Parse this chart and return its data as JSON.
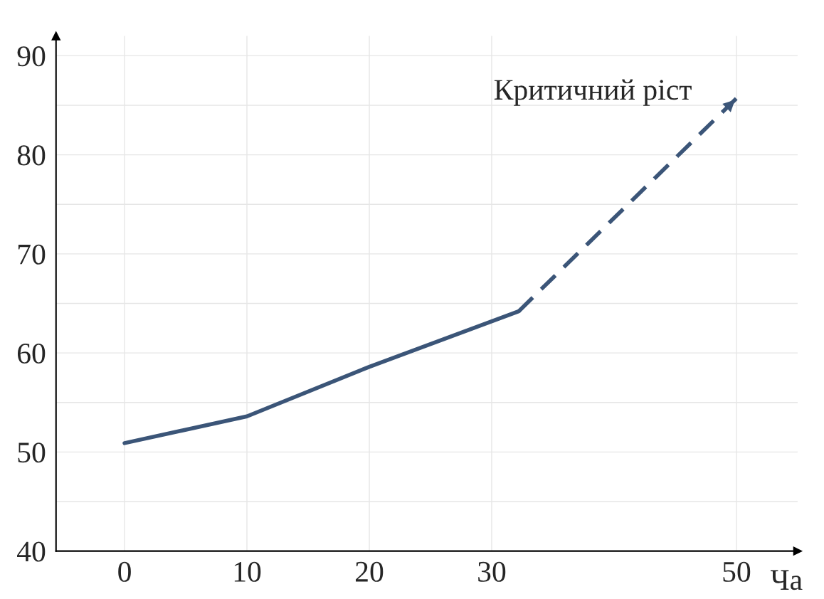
{
  "chart_data": {
    "type": "line",
    "xlabel": "Ча",
    "series": [
      {
        "color": "#3b5578",
        "x": [
          0,
          10,
          20,
          32.2
        ],
        "values": [
          50.9,
          53.6,
          58.6,
          64.2
        ],
        "line_style": "solid"
      },
      {
        "color": "#3b5578",
        "x": [
          32.2,
          50
        ],
        "values": [
          64.2,
          85.7
        ],
        "line_style": "dashed"
      }
    ],
    "annotations": [
      {
        "text": "Критичний ріст",
        "x": 50,
        "y": 85.7
      }
    ],
    "xlim": [
      -5.6,
      55
    ],
    "xticks": [
      0,
      10,
      20,
      30,
      50
    ],
    "ylim": [
      40,
      92
    ],
    "yticks": [
      40,
      {
        "value": 45,
        "label": null
      },
      50,
      {
        "value": 55,
        "label": null
      },
      60,
      {
        "value": 65,
        "label": null
      },
      70,
      {
        "value": 75,
        "label": null
      },
      80,
      {
        "value": 85,
        "label": null
      },
      90
    ],
    "grid": true,
    "marker": "none"
  }
}
